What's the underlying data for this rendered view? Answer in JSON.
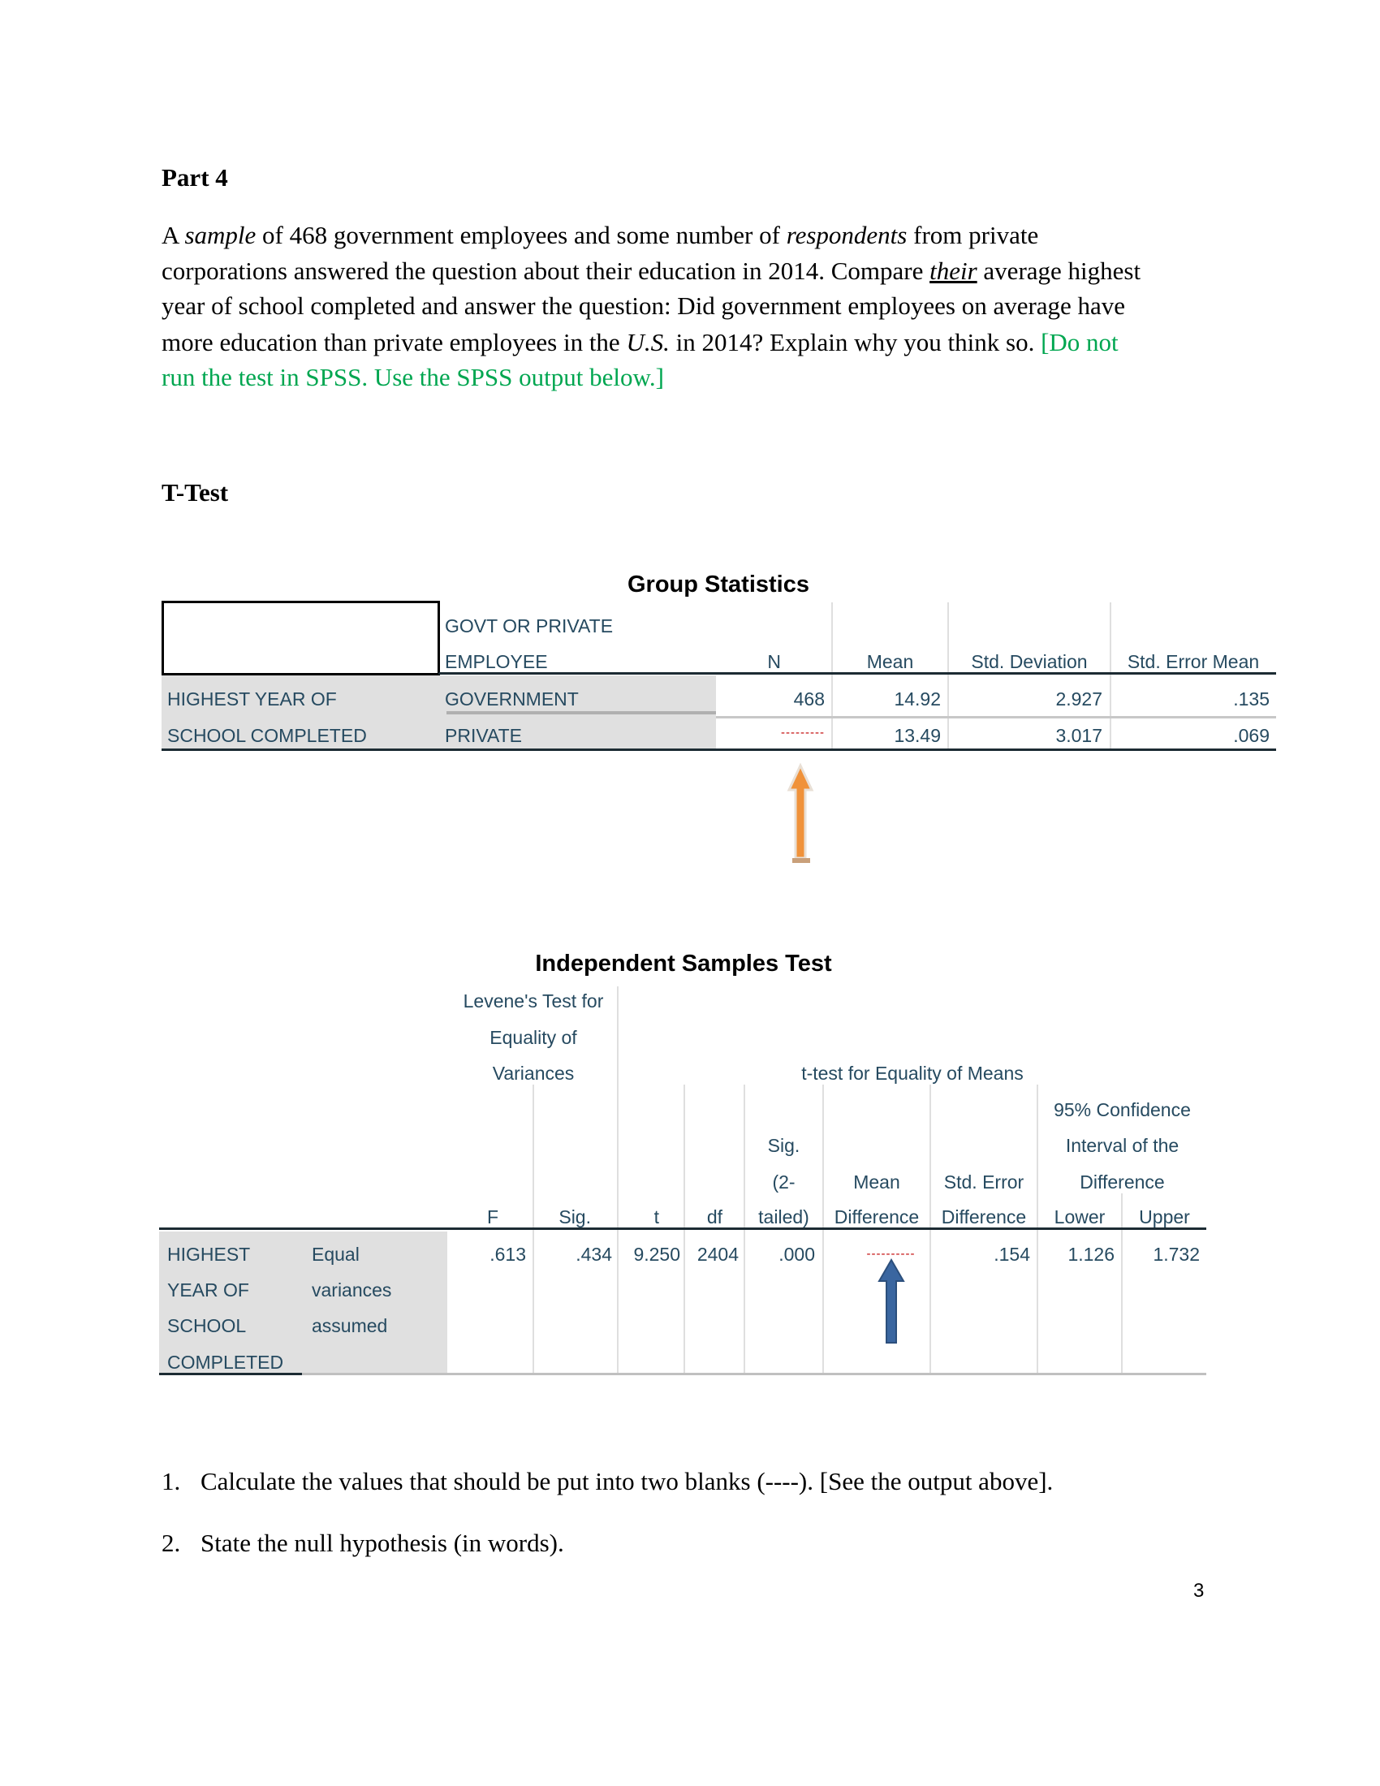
{
  "section_title": "Part 4",
  "intro": {
    "l1a": "A ",
    "l1b": "sample",
    "l1c": " of 468 government employees and some number of ",
    "l1d": "respondents",
    "l1e": " from private",
    "l2a": "corporations answered the question about their education in 2014. Compare ",
    "l2b": "their",
    "l2c": " average highest",
    "l3": "year of school completed and answer the question: Did government employees on average have",
    "l4a": "more education than private employees in the ",
    "l4b": "U.S.",
    "l4c": " in 2014? Explain why you think so. ",
    "l4d": "[Do not",
    "l5": "run the test in SPSS. Use the SPSS output below.]"
  },
  "ttest_heading": "T-Test",
  "group_stats": {
    "title": "Group Statistics",
    "header": {
      "group_l1": "GOVT OR PRIVATE",
      "group_l2": "EMPLOYEE",
      "n": "N",
      "mean": "Mean",
      "sd": "Std. Deviation",
      "se": "Std. Error Mean"
    },
    "row_label_l1": "HIGHEST YEAR OF",
    "row_label_l2": "SCHOOL COMPLETED",
    "rows": [
      {
        "group": "GOVERNMENT",
        "n": "468",
        "mean": "14.92",
        "sd": "2.927",
        "se": ".135"
      },
      {
        "group": "PRIVATE",
        "n": "---------",
        "mean": "13.49",
        "sd": "3.017",
        "se": ".069"
      }
    ]
  },
  "ind_test": {
    "title": "Independent Samples Test",
    "levene_l1": "Levene's Test for",
    "levene_l2": "Equality of",
    "levene_l3": "Variances",
    "ttest_group": "t-test for Equality of Means",
    "ci_l1": "95% Confidence",
    "ci_l2": "Interval of the",
    "ci_l3": "Difference",
    "cols": {
      "f": "F",
      "sig": "Sig.",
      "t": "t",
      "df": "df",
      "sig2_l1": "Sig.",
      "sig2_l2": "(2-",
      "sig2_l3": "tailed)",
      "md_l1": "Mean",
      "md_l2": "Difference",
      "se_l1": "Std. Error",
      "se_l2": "Difference",
      "lower": "Lower",
      "upper": "Upper"
    },
    "row_label": [
      "HIGHEST",
      "YEAR OF",
      "SCHOOL",
      "COMPLETED"
    ],
    "row_sub": [
      "Equal",
      "variances",
      "assumed"
    ],
    "values": {
      "f": ".613",
      "sig": ".434",
      "t": "9.250",
      "df": "2404",
      "sig2": ".000",
      "md": "----------",
      "se": ".154",
      "lower": "1.126",
      "upper": "1.732"
    }
  },
  "questions": [
    {
      "num": "1.",
      "text": "Calculate the values that should be put into two blanks (----). [See the output above]."
    },
    {
      "num": "2.",
      "text": "State the null hypothesis (in words)."
    }
  ],
  "page_number": "3",
  "colors": {
    "table_text": "#264a60",
    "label_bg": "#e0e0e0",
    "blank": "#c00000",
    "note_green": "#00a650",
    "arrow_orange": "#f0923a",
    "arrow_blue": "#3a66a0"
  }
}
